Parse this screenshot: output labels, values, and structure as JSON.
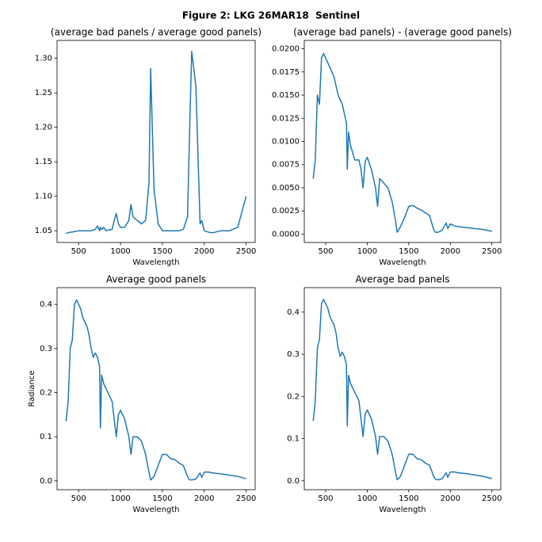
{
  "title": "Figure 2: LKG 26MAR18  Sentinel",
  "chart_data": [
    {
      "type": "line",
      "title": "(average bad panels / average good panels)",
      "xlabel": "Wavelength",
      "color": "#1f77b4",
      "x": [
        350,
        375,
        400,
        425,
        450,
        475,
        500,
        525,
        550,
        575,
        600,
        625,
        650,
        675,
        700,
        725,
        750,
        760,
        775,
        800,
        825,
        850,
        900,
        925,
        950,
        975,
        1000,
        1050,
        1100,
        1125,
        1150,
        1200,
        1250,
        1300,
        1340,
        1360,
        1400,
        1450,
        1500,
        1550,
        1600,
        1650,
        1700,
        1750,
        1800,
        1820,
        1850,
        1900,
        1950,
        1970,
        2000,
        2050,
        2100,
        2200,
        2300,
        2400,
        2500
      ],
      "values": [
        1.046,
        1.047,
        1.048,
        1.048,
        1.049,
        1.049,
        1.05,
        1.05,
        1.05,
        1.05,
        1.05,
        1.05,
        1.05,
        1.051,
        1.052,
        1.057,
        1.05,
        1.055,
        1.052,
        1.055,
        1.05,
        1.051,
        1.052,
        1.065,
        1.075,
        1.06,
        1.055,
        1.055,
        1.065,
        1.088,
        1.07,
        1.065,
        1.06,
        1.065,
        1.12,
        1.285,
        1.11,
        1.06,
        1.05,
        1.05,
        1.05,
        1.05,
        1.05,
        1.052,
        1.07,
        1.17,
        1.31,
        1.26,
        1.06,
        1.065,
        1.05,
        1.048,
        1.047,
        1.05,
        1.05,
        1.055,
        1.1
      ],
      "xlim": [
        242.5,
        2607.5
      ],
      "ylim": [
        1.033,
        1.326
      ],
      "xticks": [
        500,
        1000,
        1500,
        2000,
        2500
      ],
      "yticks": [
        1.05,
        {
          "value": 1.1,
          "label": "1.10"
        },
        1.15,
        {
          "value": 1.2,
          "label": "1.20"
        },
        1.25,
        {
          "value": 1.3,
          "label": "1.30"
        }
      ]
    },
    {
      "type": "line",
      "title": "(average bad panels) - (average good panels)",
      "xlabel": "Wavelength",
      "color": "#1f77b4",
      "x": [
        350,
        375,
        400,
        425,
        450,
        475,
        500,
        525,
        550,
        575,
        600,
        625,
        650,
        675,
        700,
        725,
        750,
        760,
        775,
        800,
        825,
        850,
        900,
        925,
        950,
        975,
        1000,
        1050,
        1100,
        1125,
        1150,
        1200,
        1250,
        1300,
        1340,
        1360,
        1400,
        1450,
        1500,
        1550,
        1600,
        1650,
        1700,
        1750,
        1800,
        1820,
        1850,
        1900,
        1950,
        1970,
        2000,
        2050,
        2100,
        2200,
        2300,
        2400,
        2500
      ],
      "values": [
        0.006,
        0.008,
        0.015,
        0.014,
        0.019,
        0.0195,
        0.019,
        0.0185,
        0.018,
        0.0175,
        0.017,
        0.016,
        0.015,
        0.0145,
        0.014,
        0.013,
        0.012,
        0.007,
        0.011,
        0.0095,
        0.0088,
        0.008,
        0.008,
        0.007,
        0.005,
        0.0078,
        0.0083,
        0.007,
        0.005,
        0.003,
        0.006,
        0.0055,
        0.005,
        0.0035,
        0.0015,
        0.0002,
        0.0008,
        0.0018,
        0.003,
        0.0031,
        0.0028,
        0.0026,
        0.0023,
        0.002,
        0.0005,
        0.0002,
        0.0002,
        0.0004,
        0.0012,
        0.0006,
        0.0011,
        0.0009,
        0.0008,
        0.0007,
        0.0006,
        0.0005,
        0.0003
      ],
      "xlim": [
        242.5,
        2607.5
      ],
      "ylim": [
        -0.0009,
        0.0209
      ],
      "xticks": [
        500,
        1000,
        1500,
        2000,
        2500
      ],
      "yticks": [
        {
          "value": 0,
          "label": "0.0000"
        },
        {
          "value": 0.0025,
          "label": "0.0025"
        },
        {
          "value": 0.005,
          "label": "0.0050"
        },
        {
          "value": 0.0075,
          "label": "0.0075"
        },
        {
          "value": 0.01,
          "label": "0.0100"
        },
        {
          "value": 0.0125,
          "label": "0.0125"
        },
        {
          "value": 0.015,
          "label": "0.0150"
        },
        {
          "value": 0.0175,
          "label": "0.0175"
        },
        {
          "value": 0.02,
          "label": "0.0200"
        }
      ]
    },
    {
      "type": "line",
      "title": "Average good panels",
      "xlabel": "Wavelength",
      "ylabel": "Radiance",
      "color": "#1f77b4",
      "x": [
        350,
        375,
        400,
        425,
        450,
        475,
        500,
        525,
        550,
        575,
        600,
        625,
        650,
        675,
        700,
        725,
        750,
        760,
        775,
        800,
        825,
        850,
        900,
        925,
        950,
        975,
        1000,
        1050,
        1100,
        1125,
        1150,
        1200,
        1250,
        1300,
        1340,
        1360,
        1400,
        1450,
        1500,
        1550,
        1600,
        1650,
        1700,
        1750,
        1800,
        1820,
        1850,
        1900,
        1950,
        1970,
        2000,
        2050,
        2100,
        2200,
        2300,
        2400,
        2500
      ],
      "values": [
        0.135,
        0.18,
        0.3,
        0.32,
        0.4,
        0.41,
        0.4,
        0.39,
        0.37,
        0.36,
        0.35,
        0.33,
        0.3,
        0.28,
        0.29,
        0.28,
        0.26,
        0.12,
        0.24,
        0.22,
        0.21,
        0.2,
        0.18,
        0.14,
        0.1,
        0.15,
        0.16,
        0.14,
        0.1,
        0.06,
        0.1,
        0.1,
        0.09,
        0.06,
        0.02,
        0.002,
        0.01,
        0.035,
        0.06,
        0.06,
        0.05,
        0.048,
        0.04,
        0.035,
        0.01,
        0.003,
        0.002,
        0.004,
        0.018,
        0.008,
        0.02,
        0.02,
        0.018,
        0.016,
        0.013,
        0.01,
        0.005
      ],
      "xlim": [
        242.5,
        2607.5
      ],
      "ylim": [
        -0.02,
        0.438
      ],
      "xticks": [
        500,
        1000,
        1500,
        2000,
        2500
      ],
      "yticks": [
        {
          "value": 0,
          "label": "0.0"
        },
        0.1,
        0.2,
        0.3,
        0.4
      ]
    },
    {
      "type": "line",
      "title": "Average bad panels",
      "xlabel": "Wavelength",
      "color": "#1f77b4",
      "x": [
        350,
        375,
        400,
        425,
        450,
        475,
        500,
        525,
        550,
        575,
        600,
        625,
        650,
        675,
        700,
        725,
        750,
        760,
        775,
        800,
        825,
        850,
        900,
        925,
        950,
        975,
        1000,
        1050,
        1100,
        1125,
        1150,
        1200,
        1250,
        1300,
        1340,
        1360,
        1400,
        1450,
        1500,
        1550,
        1600,
        1650,
        1700,
        1750,
        1800,
        1820,
        1850,
        1900,
        1950,
        1970,
        2000,
        2050,
        2100,
        2200,
        2300,
        2400,
        2500
      ],
      "values": [
        0.142,
        0.19,
        0.315,
        0.335,
        0.42,
        0.43,
        0.42,
        0.41,
        0.39,
        0.38,
        0.37,
        0.35,
        0.315,
        0.295,
        0.305,
        0.295,
        0.275,
        0.13,
        0.25,
        0.23,
        0.22,
        0.21,
        0.19,
        0.147,
        0.105,
        0.158,
        0.168,
        0.147,
        0.105,
        0.063,
        0.105,
        0.105,
        0.094,
        0.063,
        0.021,
        0.0025,
        0.0105,
        0.037,
        0.063,
        0.063,
        0.0525,
        0.05,
        0.042,
        0.037,
        0.0105,
        0.0038,
        0.0025,
        0.0045,
        0.019,
        0.0085,
        0.021,
        0.021,
        0.019,
        0.017,
        0.0137,
        0.0105,
        0.0053
      ],
      "xlim": [
        242.5,
        2607.5
      ],
      "ylim": [
        -0.021,
        0.458
      ],
      "xticks": [
        500,
        1000,
        1500,
        2000,
        2500
      ],
      "yticks": [
        {
          "value": 0,
          "label": "0.0"
        },
        0.1,
        0.2,
        0.3,
        0.4
      ]
    }
  ]
}
